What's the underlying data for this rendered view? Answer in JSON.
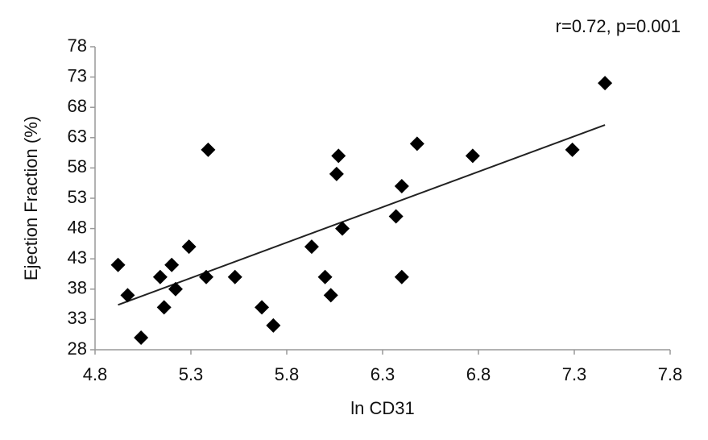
{
  "chart_data": {
    "type": "scatter",
    "annotation": "r=0.72, p=0.001",
    "x_label": "ln CD31",
    "y_label": "Ejection Fraction (%)",
    "color": "#000000",
    "x": [
      4.92,
      4.97,
      5.04,
      5.14,
      5.16,
      5.2,
      5.22,
      5.29,
      5.38,
      5.39,
      5.53,
      5.67,
      5.73,
      5.93,
      6.0,
      6.03,
      6.06,
      6.07,
      6.09,
      6.37,
      6.4,
      6.4,
      6.48,
      6.77,
      7.29,
      7.46
    ],
    "values": [
      42,
      37,
      30,
      40,
      35,
      42,
      38,
      45,
      40,
      61,
      40,
      35,
      32,
      45,
      40,
      37,
      57,
      60,
      48,
      50,
      55,
      40,
      62,
      60,
      61,
      72
    ],
    "trendline": {
      "x": [
        4.92,
        7.46
      ],
      "y": [
        35.4,
        65.1
      ]
    },
    "xlim": [
      4.8,
      7.8
    ],
    "xticks": [
      4.8,
      5.3,
      5.8,
      6.3,
      6.8,
      7.3,
      7.8
    ],
    "ylim": [
      28,
      78
    ],
    "yticks": [
      28,
      33,
      38,
      43,
      48,
      53,
      58,
      63,
      68,
      73,
      78
    ]
  }
}
